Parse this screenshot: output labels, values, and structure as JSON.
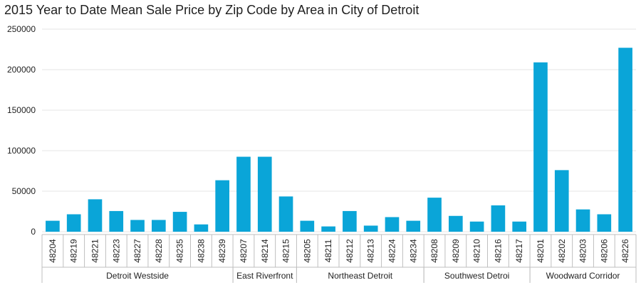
{
  "chart_data": {
    "type": "bar",
    "title": "2015 Year to Date Mean Sale Price by Zip Code by Area in City of Detroit",
    "xlabel": "",
    "ylabel": "",
    "ylim": [
      0,
      250000
    ],
    "yticks": [
      "0",
      "50000",
      "100000",
      "150000",
      "200000",
      "250000"
    ],
    "grid": true,
    "bar_color": "#0aa5d8",
    "groups": [
      {
        "name": "Detroit Westside",
        "categories": [
          "48204",
          "48219",
          "48221",
          "48223",
          "48227",
          "48228",
          "48235",
          "48238",
          "48239"
        ],
        "values": [
          13500,
          21500,
          40000,
          25500,
          14500,
          14500,
          24500,
          9000,
          63500
        ]
      },
      {
        "name": "East Riverfront",
        "categories": [
          "48207",
          "48214",
          "48215"
        ],
        "values": [
          92500,
          92500,
          43500
        ]
      },
      {
        "name": "Northeast Detroit",
        "categories": [
          "48205",
          "48211",
          "48212",
          "48213",
          "48224",
          "48234"
        ],
        "values": [
          13500,
          6500,
          25500,
          7500,
          18000,
          13500
        ]
      },
      {
        "name": "Southwest Detroi",
        "categories": [
          "48208",
          "48209",
          "48210",
          "48216",
          "48217"
        ],
        "values": [
          42000,
          19500,
          12500,
          32500,
          12500
        ]
      },
      {
        "name": "Woodward Corridor",
        "categories": [
          "48201",
          "48202",
          "48203",
          "48206",
          "48226"
        ],
        "values": [
          209000,
          76000,
          27500,
          21500,
          227000
        ]
      }
    ]
  }
}
